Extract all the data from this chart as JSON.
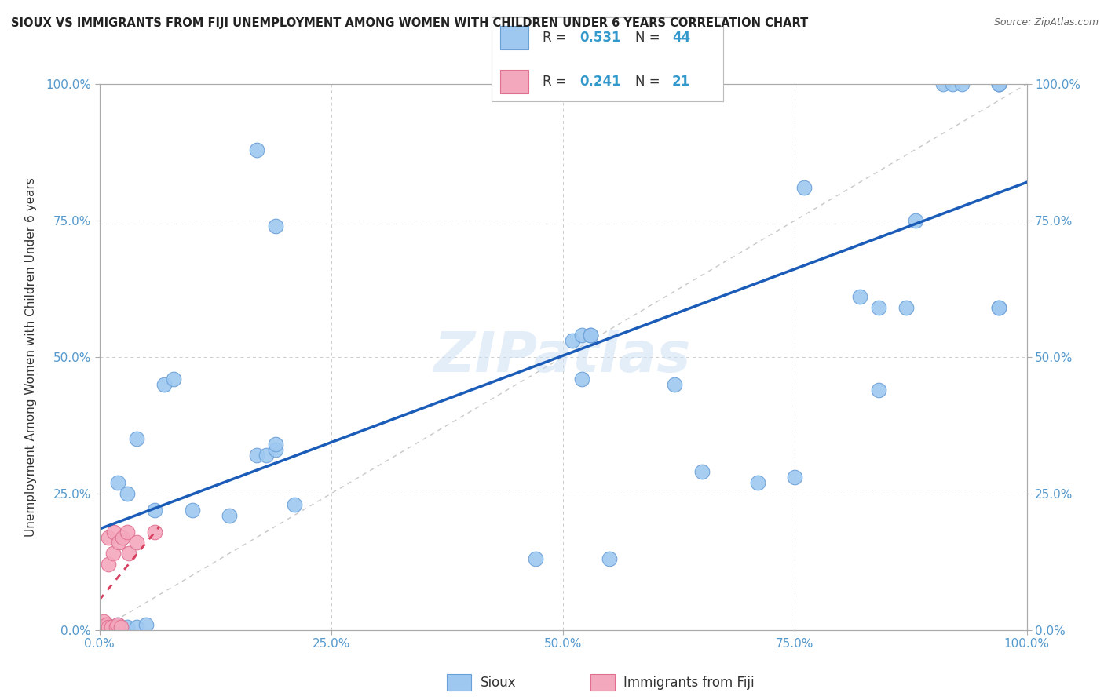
{
  "title": "SIOUX VS IMMIGRANTS FROM FIJI UNEMPLOYMENT AMONG WOMEN WITH CHILDREN UNDER 6 YEARS CORRELATION CHART",
  "source": "Source: ZipAtlas.com",
  "ylabel": "Unemployment Among Women with Children Under 6 years",
  "xticklabels": [
    "0.0%",
    "25.0%",
    "50.0%",
    "75.0%",
    "100.0%"
  ],
  "yticklabels_left": [
    "0.0%",
    "25.0%",
    "50.0%",
    "75.0%",
    "100.0%"
  ],
  "yticklabels_right": [
    "0.0%",
    "25.0%",
    "50.0%",
    "75.0%",
    "100.0%"
  ],
  "xlim": [
    0,
    1
  ],
  "ylim": [
    0,
    1
  ],
  "sioux_scatter_x": [
    0.02,
    0.03,
    0.04,
    0.05,
    0.02,
    0.03,
    0.04,
    0.06,
    0.07,
    0.08,
    0.1,
    0.14,
    0.17,
    0.18,
    0.17,
    0.19,
    0.19,
    0.19,
    0.21,
    0.47,
    0.51,
    0.52,
    0.52,
    0.53,
    0.53,
    0.62,
    0.65,
    0.71,
    0.75,
    0.76,
    0.82,
    0.84,
    0.84,
    0.87,
    0.88,
    0.91,
    0.92,
    0.93,
    0.97,
    0.97,
    0.97,
    0.97,
    0.97,
    0.55
  ],
  "sioux_scatter_y": [
    0.01,
    0.005,
    0.005,
    0.01,
    0.27,
    0.25,
    0.35,
    0.22,
    0.45,
    0.46,
    0.22,
    0.21,
    0.32,
    0.32,
    0.88,
    0.33,
    0.34,
    0.74,
    0.23,
    0.13,
    0.53,
    0.54,
    0.46,
    0.54,
    0.54,
    0.45,
    0.29,
    0.27,
    0.28,
    0.81,
    0.61,
    0.59,
    0.44,
    0.59,
    0.75,
    1.0,
    1.0,
    1.0,
    0.59,
    1.0,
    0.59,
    1.0,
    1.0,
    0.13
  ],
  "fiji_scatter_x": [
    0.005,
    0.005,
    0.005,
    0.008,
    0.008,
    0.01,
    0.01,
    0.01,
    0.013,
    0.015,
    0.016,
    0.018,
    0.02,
    0.02,
    0.021,
    0.023,
    0.025,
    0.03,
    0.032,
    0.04,
    0.06
  ],
  "fiji_scatter_y": [
    0.005,
    0.01,
    0.015,
    0.005,
    0.01,
    0.17,
    0.005,
    0.12,
    0.005,
    0.14,
    0.18,
    0.005,
    0.005,
    0.01,
    0.16,
    0.005,
    0.17,
    0.18,
    0.14,
    0.16,
    0.18
  ],
  "sioux_line_x": [
    0,
    1.0
  ],
  "sioux_line_y": [
    0.185,
    0.82
  ],
  "fiji_line_x": [
    0.0,
    0.065
  ],
  "fiji_line_y": [
    0.055,
    0.19
  ],
  "sioux_color": "#9ec8f0",
  "fiji_color": "#f4a8be",
  "sioux_marker_edge": "#6aA0d8",
  "fiji_marker_edge": "#e07090",
  "sioux_line_color": "#1a5cb8",
  "fiji_line_color": "#d84060",
  "diagonal_color": "#c8c8c8",
  "watermark": "ZIPatlas",
  "background_color": "#ffffff",
  "grid_color": "#cccccc",
  "tick_color": "#5599cc",
  "legend_sioux_color": "#9ec8f0",
  "legend_fiji_color": "#f4a8be",
  "legend_r1": "R = 0.531",
  "legend_n1": "N = 44",
  "legend_r2": "R = 0.241",
  "legend_n2": "N = 21",
  "bottom_label_sioux": "Sioux",
  "bottom_label_fiji": "Immigrants from Fiji"
}
